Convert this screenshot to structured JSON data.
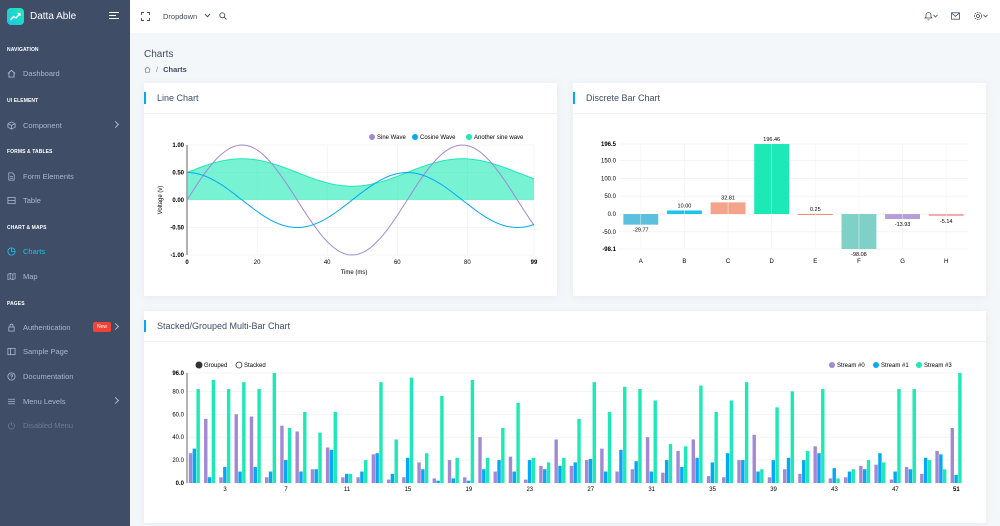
{
  "brand": {
    "name": "Datta Able"
  },
  "sidebar": {
    "captions": [
      "NAVIGATION",
      "UI ELEMENT",
      "FORMS & TABLES",
      "CHART & MAPS",
      "PAGES"
    ],
    "items": [
      {
        "label": "Dashboard"
      },
      {
        "label": "Component"
      },
      {
        "label": "Form Elements"
      },
      {
        "label": "Table"
      },
      {
        "label": "Charts"
      },
      {
        "label": "Map"
      },
      {
        "label": "Authentication",
        "badge": "New"
      },
      {
        "label": "Sample Page"
      },
      {
        "label": "Documentation"
      },
      {
        "label": "Menu Levels"
      },
      {
        "label": "Disabled Menu"
      }
    ]
  },
  "header": {
    "dropdown_label": "Dropdown"
  },
  "page": {
    "title": "Charts",
    "breadcrumb_current": "Charts"
  },
  "colors": {
    "sine": "#a389d4",
    "cosine": "#04a9f5",
    "another": "#1de9b6",
    "sidebar": "#3f4d67"
  },
  "cards": {
    "line": {
      "title": "Line Chart"
    },
    "bar": {
      "title": "Discrete Bar Chart"
    },
    "multi": {
      "title": "Stacked/Grouped Multi-Bar Chart"
    }
  },
  "chart_data": [
    {
      "type": "line",
      "xlabel": "Time (ms)",
      "ylabel": "Voltage (v)",
      "xlim": [
        0,
        99
      ],
      "ylim": [
        -1,
        1
      ],
      "xticks": [
        "0",
        "20",
        "40",
        "60",
        "80",
        "99"
      ],
      "yticks": [
        "1.00",
        "0.50",
        "0.00",
        "-0.50",
        "-1.00"
      ],
      "legend": [
        "Sine Wave",
        "Cosine Wave",
        "Another sine wave"
      ],
      "series": [
        {
          "name": "Sine Wave",
          "formula": "sin(x/10)"
        },
        {
          "name": "Cosine Wave",
          "formula": "0.5*cos(x/10)"
        },
        {
          "name": "Another sine wave",
          "formula": "0.25*sin(x/10)+0.5",
          "area": true
        }
      ]
    },
    {
      "type": "bar",
      "categories": [
        "A",
        "B",
        "C",
        "D",
        "E",
        "F",
        "G",
        "H"
      ],
      "values": [
        -29.77,
        10.0,
        32.81,
        196.46,
        0.25,
        -98.08,
        -13.93,
        -5.14
      ],
      "value_labels": [
        "-29.77",
        "10.00",
        "32.81",
        "196.46",
        "0.25",
        "-98.08",
        "-13.93",
        "-5.14"
      ],
      "colors": [
        "#5bc0de",
        "#1dc4e9",
        "#f4a48b",
        "#1de9b6",
        "#e88e7a",
        "#7fd1c8",
        "#b69fd8",
        "#f2a3a3"
      ],
      "ylim": [
        -98.1,
        196.5
      ],
      "yticks": [
        "196.5",
        "150.0",
        "100.0",
        "50.0",
        "0.0",
        "-50.0",
        "-98.1"
      ]
    },
    {
      "type": "bar",
      "mode": "grouped",
      "controls": [
        "Grouped",
        "Stacked"
      ],
      "legend": [
        "Stream #0",
        "Stream #1",
        "Stream #3"
      ],
      "ylim": [
        0,
        96
      ],
      "yticks": [
        "96.0",
        "80.0",
        "60.0",
        "40.0",
        "20.0",
        "0.0"
      ],
      "xticks": [
        "3",
        "7",
        "11",
        "15",
        "19",
        "23",
        "27",
        "31",
        "35",
        "39",
        "43",
        "47",
        "51"
      ],
      "series": [
        {
          "name": "Stream #0",
          "values": [
            26,
            56,
            5,
            60,
            58,
            5,
            50,
            45,
            12,
            31,
            5,
            5,
            25,
            3,
            5,
            18,
            4,
            20,
            5,
            40,
            10,
            23,
            3,
            15,
            38,
            15,
            20,
            30,
            10,
            12,
            40,
            9,
            28,
            38,
            6,
            5,
            20,
            42,
            5,
            12,
            8,
            32,
            4,
            5,
            15,
            16,
            3,
            14,
            8,
            28,
            48
          ]
        },
        {
          "name": "Stream #1",
          "values": [
            30,
            5,
            14,
            10,
            14,
            10,
            20,
            10,
            12,
            29,
            8,
            10,
            26,
            8,
            22,
            12,
            2,
            4,
            2,
            12,
            20,
            10,
            20,
            12,
            15,
            18,
            21,
            10,
            29,
            19,
            10,
            20,
            14,
            22,
            18,
            26,
            20,
            10,
            20,
            22,
            20,
            26,
            13,
            10,
            12,
            26,
            10,
            12,
            22,
            25,
            7
          ]
        },
        {
          "name": "Stream #3",
          "values": [
            82,
            90,
            82,
            88,
            82,
            96,
            48,
            62,
            44,
            62,
            8,
            20,
            88,
            38,
            92,
            26,
            76,
            22,
            90,
            22,
            48,
            70,
            22,
            18,
            22,
            56,
            88,
            62,
            84,
            82,
            72,
            34,
            32,
            85,
            62,
            72,
            88,
            12,
            66,
            80,
            28,
            82,
            4,
            12,
            20,
            18,
            82,
            82,
            20,
            12,
            96
          ]
        }
      ]
    }
  ]
}
